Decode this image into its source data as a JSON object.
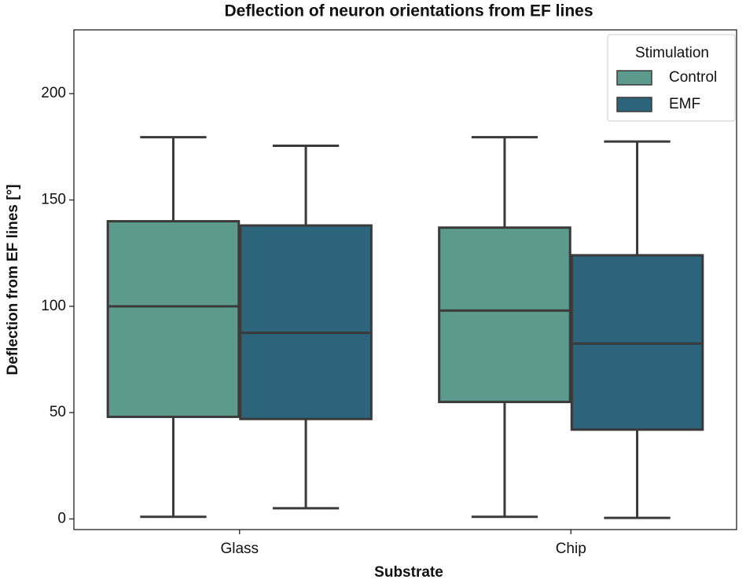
{
  "chart_data": {
    "type": "box",
    "title": "Deflection of neuron orientations from EF lines",
    "x_label": "Substrate",
    "y_label": "Deflection from EF lines [°]",
    "categories": [
      "Glass",
      "Chip"
    ],
    "legend_title": "Stimulation",
    "legend_position": "upper right",
    "series": [
      {
        "name": "Control",
        "color": "#5b9a8c",
        "min": [
          1,
          1
        ],
        "q1": [
          48,
          55
        ],
        "median": [
          100,
          98
        ],
        "q3": [
          140,
          137
        ],
        "max": [
          179.5,
          179.5
        ]
      },
      {
        "name": "EMF",
        "color": "#2b647b",
        "min": [
          5,
          0.5
        ],
        "q1": [
          47,
          42
        ],
        "median": [
          87.5,
          82.5
        ],
        "q3": [
          138,
          124
        ],
        "max": [
          175.5,
          177.5
        ]
      }
    ],
    "ylim": [
      -5,
      230
    ],
    "yticks": [
      0,
      50,
      100,
      150,
      200
    ]
  }
}
